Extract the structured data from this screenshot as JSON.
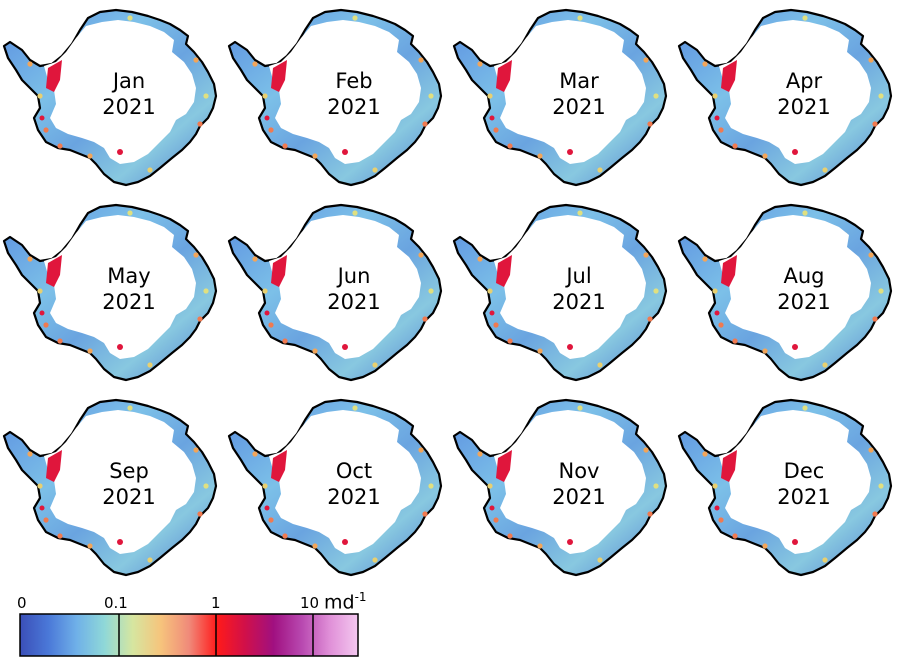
{
  "panels": [
    {
      "month": "Jan",
      "year": "2021"
    },
    {
      "month": "Feb",
      "year": "2021"
    },
    {
      "month": "Mar",
      "year": "2021"
    },
    {
      "month": "Apr",
      "year": "2021"
    },
    {
      "month": "May",
      "year": "2021"
    },
    {
      "month": "Jun",
      "year": "2021"
    },
    {
      "month": "Jul",
      "year": "2021"
    },
    {
      "month": "Aug",
      "year": "2021"
    },
    {
      "month": "Sep",
      "year": "2021"
    },
    {
      "month": "Oct",
      "year": "2021"
    },
    {
      "month": "Nov",
      "year": "2021"
    },
    {
      "month": "Dec",
      "year": "2021"
    }
  ],
  "colorbar": {
    "ticks": [
      "0",
      "0.1",
      "1",
      "10"
    ],
    "unit": "md",
    "unit_exponent": "-1",
    "colors": [
      "#3b4fb8",
      "#4a78d8",
      "#6fb0e8",
      "#8fd8d8",
      "#d6e6a0",
      "#f6c47c",
      "#f08a7a",
      "#ff1a1a",
      "#d0104a",
      "#a01080",
      "#b848b0",
      "#e090d8",
      "#f4c8f0"
    ]
  }
}
